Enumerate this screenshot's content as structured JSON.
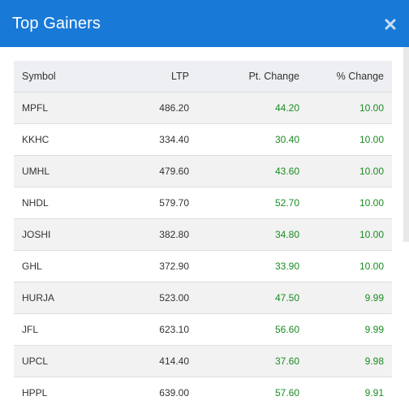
{
  "dialog": {
    "title": "Top Gainers",
    "close_icon": "close-icon"
  },
  "colors": {
    "header_bg": "#1879d7",
    "gain_text": "#1a8c22"
  },
  "table": {
    "headers": {
      "symbol": "Symbol",
      "ltp": "LTP",
      "pt_change": "Pt. Change",
      "pct_change": "% Change"
    },
    "rows": [
      {
        "symbol": "MPFL",
        "ltp": "486.20",
        "pt_change": "44.20",
        "pct_change": "10.00"
      },
      {
        "symbol": "KKHC",
        "ltp": "334.40",
        "pt_change": "30.40",
        "pct_change": "10.00"
      },
      {
        "symbol": "UMHL",
        "ltp": "479.60",
        "pt_change": "43.60",
        "pct_change": "10.00"
      },
      {
        "symbol": "NHDL",
        "ltp": "579.70",
        "pt_change": "52.70",
        "pct_change": "10.00"
      },
      {
        "symbol": "JOSHI",
        "ltp": "382.80",
        "pt_change": "34.80",
        "pct_change": "10.00"
      },
      {
        "symbol": "GHL",
        "ltp": "372.90",
        "pt_change": "33.90",
        "pct_change": "10.00"
      },
      {
        "symbol": "HURJA",
        "ltp": "523.00",
        "pt_change": "47.50",
        "pct_change": "9.99"
      },
      {
        "symbol": "JFL",
        "ltp": "623.10",
        "pt_change": "56.60",
        "pct_change": "9.99"
      },
      {
        "symbol": "UPCL",
        "ltp": "414.40",
        "pt_change": "37.60",
        "pct_change": "9.98"
      },
      {
        "symbol": "HPPL",
        "ltp": "639.00",
        "pt_change": "57.60",
        "pct_change": "9.91"
      }
    ]
  }
}
